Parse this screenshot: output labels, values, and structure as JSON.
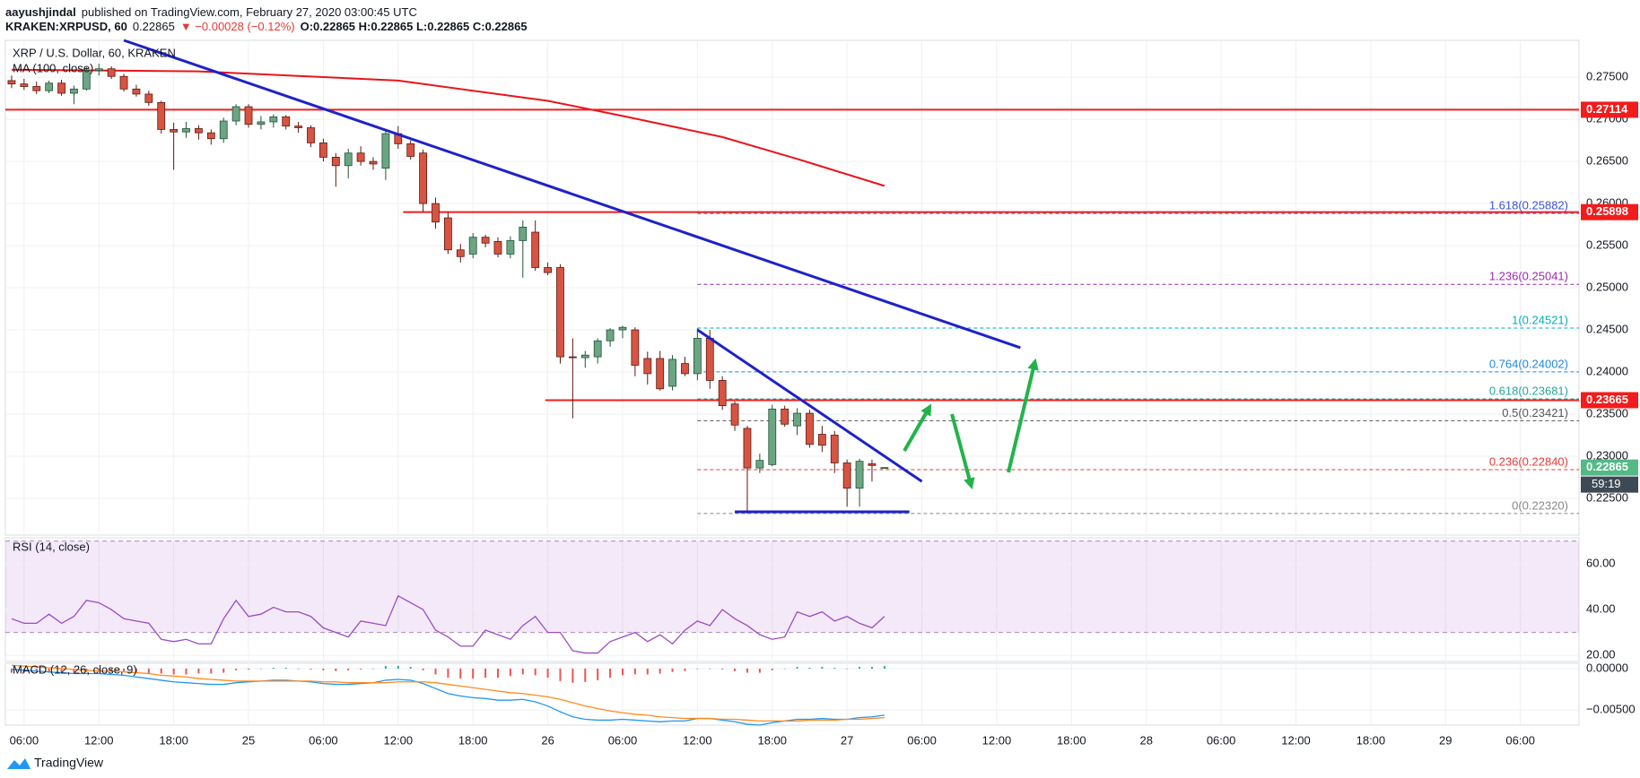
{
  "header": {
    "author": "aayushjindal",
    "published": "published on TradingView.com, February 27, 2020 03:00:45 UTC",
    "symbol": "KRAKEN:XRPUSD, 60",
    "price": "0.22865",
    "change": "▼ −0.00028 (−0.12%)",
    "ohlc": "O:0.22865 H:0.22865 L:0.22865 C:0.22865"
  },
  "chart_data": {
    "type": "candlestick",
    "title": "XRP / U.S. Dollar, 60, KRAKEN",
    "x": [
      5,
      6,
      7,
      8,
      9,
      10,
      11,
      12,
      13,
      14,
      15,
      16,
      17,
      18,
      19,
      20,
      21,
      22,
      23,
      24,
      25,
      26,
      27,
      28,
      29,
      30,
      31,
      32,
      33,
      34,
      35,
      36,
      37,
      38,
      39,
      40,
      41,
      42,
      43,
      44,
      45,
      46,
      47,
      48,
      49,
      50,
      51,
      52,
      53,
      54,
      55,
      56,
      57,
      58,
      59,
      60,
      61,
      62,
      63,
      64,
      65,
      66,
      67,
      68,
      69,
      70,
      71,
      72,
      73,
      74,
      75
    ],
    "open": [
      0.2746,
      0.2742,
      0.2739,
      0.2734,
      0.2743,
      0.2731,
      0.2736,
      0.2758,
      0.276,
      0.2751,
      0.2736,
      0.273,
      0.272,
      0.2688,
      0.2685,
      0.2689,
      0.2684,
      0.2677,
      0.2698,
      0.2715,
      0.2694,
      0.2697,
      0.2703,
      0.2692,
      0.269,
      0.2672,
      0.2655,
      0.2645,
      0.266,
      0.265,
      0.2642,
      0.2683,
      0.2671,
      0.266,
      0.26,
      0.2583,
      0.2545,
      0.254,
      0.256,
      0.2555,
      0.254,
      0.2556,
      0.2566,
      0.2524,
      0.2524,
      0.2418,
      0.2417,
      0.2418,
      0.2437,
      0.245,
      0.245,
      0.2416,
      0.2416,
      0.2383,
      0.241,
      0.2398,
      0.244,
      0.239,
      0.2362,
      0.2333,
      0.2286,
      0.229,
      0.2356,
      0.2336,
      0.2351,
      0.2326,
      0.2325,
      0.2292,
      0.2262,
      0.2291,
      0.22865
    ],
    "high": [
      0.2752,
      0.2748,
      0.2745,
      0.2746,
      0.2747,
      0.274,
      0.2762,
      0.2766,
      0.2763,
      0.2754,
      0.2741,
      0.2734,
      0.2722,
      0.2696,
      0.2697,
      0.2693,
      0.2688,
      0.2702,
      0.2718,
      0.2718,
      0.2704,
      0.2706,
      0.2705,
      0.2697,
      0.2693,
      0.2677,
      0.266,
      0.2665,
      0.2668,
      0.2655,
      0.2688,
      0.2692,
      0.2675,
      0.2664,
      0.2607,
      0.259,
      0.2552,
      0.2565,
      0.2563,
      0.256,
      0.2561,
      0.258,
      0.258,
      0.253,
      0.2528,
      0.244,
      0.2425,
      0.244,
      0.2452,
      0.2455,
      0.2453,
      0.2424,
      0.2425,
      0.242,
      0.2418,
      0.2452,
      0.245,
      0.2395,
      0.2365,
      0.2336,
      0.2303,
      0.2361,
      0.236,
      0.2357,
      0.2355,
      0.2336,
      0.233,
      0.2296,
      0.2297,
      0.2296,
      0.22865
    ],
    "low": [
      0.2737,
      0.2735,
      0.273,
      0.2731,
      0.2728,
      0.2718,
      0.2734,
      0.2752,
      0.2748,
      0.2733,
      0.2727,
      0.2716,
      0.2683,
      0.264,
      0.2678,
      0.2676,
      0.267,
      0.2672,
      0.2693,
      0.269,
      0.2688,
      0.269,
      0.2688,
      0.2684,
      0.2667,
      0.265,
      0.262,
      0.263,
      0.2645,
      0.264,
      0.2628,
      0.2665,
      0.2652,
      0.259,
      0.257,
      0.254,
      0.253,
      0.2535,
      0.2548,
      0.2536,
      0.2535,
      0.2512,
      0.252,
      0.2515,
      0.241,
      0.2345,
      0.2405,
      0.241,
      0.243,
      0.244,
      0.2395,
      0.2385,
      0.2378,
      0.2378,
      0.2395,
      0.239,
      0.238,
      0.2355,
      0.233,
      0.2232,
      0.228,
      0.2288,
      0.2335,
      0.2325,
      0.231,
      0.2305,
      0.228,
      0.224,
      0.224,
      0.227,
      0.22865
    ],
    "close": [
      0.2742,
      0.2739,
      0.2734,
      0.2743,
      0.2731,
      0.2736,
      0.2758,
      0.276,
      0.2751,
      0.2736,
      0.273,
      0.272,
      0.2688,
      0.2685,
      0.2689,
      0.2684,
      0.2677,
      0.2698,
      0.2715,
      0.2694,
      0.2697,
      0.2703,
      0.2692,
      0.269,
      0.2672,
      0.2655,
      0.2645,
      0.266,
      0.265,
      0.2647,
      0.2683,
      0.2671,
      0.2656,
      0.26,
      0.2578,
      0.2545,
      0.2537,
      0.256,
      0.2553,
      0.254,
      0.2556,
      0.2572,
      0.2524,
      0.2518,
      0.2418,
      0.2417,
      0.242,
      0.2437,
      0.245,
      0.2453,
      0.2408,
      0.2398,
      0.238,
      0.2415,
      0.2398,
      0.244,
      0.239,
      0.236,
      0.2337,
      0.2286,
      0.2295,
      0.2356,
      0.2338,
      0.2351,
      0.2314,
      0.2313,
      0.2292,
      0.2262,
      0.2294,
      0.2289,
      0.22865
    ],
    "up_color": "#6ba583",
    "down_color": "#d75442",
    "xlim": [
      4.5,
      130.7
    ],
    "xticks": [
      {
        "value": 6,
        "label": "06:00"
      },
      {
        "value": 12,
        "label": "12:00"
      },
      {
        "value": 18,
        "label": "18:00"
      },
      {
        "value": 24,
        "label": "25"
      },
      {
        "value": 30,
        "label": "06:00"
      },
      {
        "value": 36,
        "label": "12:00"
      },
      {
        "value": 42,
        "label": "18:00"
      },
      {
        "value": 48,
        "label": "26"
      },
      {
        "value": 54,
        "label": "06:00"
      },
      {
        "value": 60,
        "label": "12:00"
      },
      {
        "value": 66,
        "label": "18:00"
      },
      {
        "value": 72,
        "label": "27"
      },
      {
        "value": 78,
        "label": "06:00"
      },
      {
        "value": 84,
        "label": "12:00"
      },
      {
        "value": 90,
        "label": "18:00"
      },
      {
        "value": 96,
        "label": "28"
      },
      {
        "value": 102,
        "label": "06:00"
      },
      {
        "value": 108,
        "label": "12:00"
      },
      {
        "value": 114,
        "label": "18:00"
      },
      {
        "value": 120,
        "label": "29"
      },
      {
        "value": 126,
        "label": "06:00"
      }
    ],
    "ylim": [
      0.22063,
      0.27938
    ],
    "yticks": [
      {
        "value": 0.225,
        "label": "0.22500"
      },
      {
        "value": 0.23,
        "label": "0.23000"
      },
      {
        "value": 0.235,
        "label": "0.23500"
      },
      {
        "value": 0.24,
        "label": "0.24000"
      },
      {
        "value": 0.245,
        "label": "0.24500"
      },
      {
        "value": 0.25,
        "label": "0.25000"
      },
      {
        "value": 0.255,
        "label": "0.25500"
      },
      {
        "value": 0.26,
        "label": "0.26000"
      },
      {
        "value": 0.265,
        "label": "0.26500"
      },
      {
        "value": 0.27,
        "label": "0.27000"
      },
      {
        "value": 0.275,
        "label": "0.27500"
      }
    ],
    "grid": true,
    "ma": {
      "name": "MA (100, close)",
      "color": "#e8151b",
      "x": [
        5,
        20,
        36,
        48,
        54,
        62,
        68,
        75
      ],
      "values": [
        0.2759,
        0.2757,
        0.2746,
        0.2722,
        0.2704,
        0.2679,
        0.2653,
        0.2621
      ]
    },
    "trend_lines": [
      {
        "x": [
          14,
          85.9
        ],
        "values": [
          0.27938,
          0.24288
        ],
        "color": "#1e22c8"
      },
      {
        "x": [
          60,
          78
        ],
        "values": [
          0.245,
          0.227
        ],
        "color": "#1e22c8"
      },
      {
        "x": [
          63,
          77
        ],
        "values": [
          0.2234,
          0.2234
        ],
        "color": "#1e22c8"
      }
    ],
    "levels": {
      "color": "#f21c1c",
      "x_start": [
        4.5,
        36.4,
        47.8
      ],
      "values": [
        0.27114,
        0.25898,
        0.23665
      ]
    },
    "fib": {
      "x_start": 60,
      "values": [
        0.25882,
        0.25041,
        0.24521,
        0.24002,
        0.23681,
        0.23421,
        0.2284,
        0.2232
      ],
      "value_labels": [
        "1.618(0.25882)",
        "1.236(0.25041)",
        "1(0.24521)",
        "0.764(0.24002)",
        "0.618(0.23681)",
        "0.5(0.23421)",
        "0.236(0.22840)",
        "0(0.22320)"
      ],
      "colors": [
        "#3f51d6",
        "#9c27b0",
        "#00acc1",
        "#1e88e5",
        "#26a69a",
        "#555555",
        "#e53935",
        "#888888"
      ]
    },
    "last_price": 0.22865,
    "last_color": "#53b987",
    "countdown": "59:19",
    "rsi": {
      "name": "RSI (14, close)",
      "color": "#9c4bc6",
      "band": [
        30,
        70
      ],
      "ylim": [
        17.3,
        71.4
      ],
      "yticks": [
        {
          "value": 20,
          "label": "20.00"
        },
        {
          "value": 40,
          "label": "40.00"
        },
        {
          "value": 60,
          "label": "60.00"
        }
      ],
      "values": [
        36,
        34,
        34,
        38,
        34,
        37,
        44,
        43,
        40,
        36,
        35,
        34,
        27,
        26,
        27,
        25,
        25,
        36,
        44,
        37,
        38,
        41,
        39,
        39,
        37,
        32,
        30,
        28,
        35,
        34,
        33,
        46,
        43,
        40,
        31,
        28,
        24,
        24,
        31,
        29,
        27,
        33,
        37,
        30,
        30,
        22,
        21,
        21,
        26,
        28,
        30,
        26,
        29,
        25,
        31,
        35,
        33,
        40,
        36,
        33,
        29,
        27,
        28,
        39,
        37,
        39,
        35,
        37,
        34,
        32,
        37
      ]
    },
    "macd": {
      "name": "MACD (12, 26, close, 9)",
      "ylim": [
        -0.0068,
        0.00064
      ],
      "yticks": [
        {
          "value": 0,
          "label": "0.00000"
        },
        {
          "value": -0.005,
          "label": "−0.00500"
        }
      ],
      "macd_color": "#2196f3",
      "signal_color": "#ff8a1f",
      "hist_up": "#26a69a",
      "hist_down": "#ef5350",
      "macd": [
        -0.0001,
        -0.0002,
        -0.0003,
        -0.0004,
        -0.0005,
        -0.0006,
        -0.0006,
        -0.0006,
        -0.0007,
        -0.0008,
        -0.001,
        -0.0012,
        -0.0014,
        -0.0016,
        -0.0017,
        -0.0018,
        -0.0019,
        -0.0019,
        -0.0017,
        -0.0016,
        -0.0015,
        -0.0014,
        -0.0014,
        -0.0015,
        -0.0016,
        -0.0018,
        -0.0019,
        -0.0019,
        -0.0018,
        -0.0017,
        -0.0014,
        -0.0013,
        -0.0014,
        -0.0018,
        -0.0024,
        -0.003,
        -0.0033,
        -0.0035,
        -0.0036,
        -0.0038,
        -0.0038,
        -0.0037,
        -0.004,
        -0.0045,
        -0.0052,
        -0.0058,
        -0.0061,
        -0.0062,
        -0.0062,
        -0.0061,
        -0.0062,
        -0.0063,
        -0.0064,
        -0.0063,
        -0.0063,
        -0.006,
        -0.006,
        -0.0062,
        -0.0064,
        -0.0067,
        -0.0068,
        -0.0065,
        -0.0063,
        -0.0061,
        -0.0061,
        -0.006,
        -0.0061,
        -0.0061,
        -0.0059,
        -0.0058,
        -0.0056
      ],
      "signal": [
        0.0004,
        0.0003,
        0.0002,
        0.0001,
        0,
        -0.0001,
        -0.0002,
        -0.0003,
        -0.0003,
        -0.0004,
        -0.0005,
        -0.0006,
        -0.0008,
        -0.0009,
        -0.001,
        -0.0012,
        -0.0013,
        -0.0014,
        -0.0015,
        -0.0015,
        -0.0015,
        -0.0015,
        -0.0015,
        -0.0015,
        -0.0015,
        -0.0016,
        -0.0016,
        -0.0017,
        -0.0017,
        -0.0017,
        -0.0017,
        -0.0016,
        -0.0016,
        -0.0016,
        -0.0017,
        -0.0019,
        -0.0021,
        -0.0023,
        -0.0025,
        -0.0027,
        -0.0029,
        -0.003,
        -0.0032,
        -0.0034,
        -0.0037,
        -0.0041,
        -0.0045,
        -0.0048,
        -0.0051,
        -0.0053,
        -0.0055,
        -0.0056,
        -0.0058,
        -0.0059,
        -0.006,
        -0.006,
        -0.006,
        -0.0061,
        -0.0061,
        -0.0062,
        -0.0063,
        -0.0063,
        -0.0063,
        -0.0063,
        -0.0062,
        -0.0062,
        -0.0062,
        -0.0061,
        -0.0061,
        -0.006,
        -0.0059
      ],
      "histogram": [
        -0.0005,
        -0.0005,
        -0.0005,
        -0.0005,
        -0.0005,
        -0.0005,
        -0.0004,
        -0.0003,
        -0.0004,
        -0.0004,
        -0.0005,
        -0.0006,
        -0.0006,
        -0.0007,
        -0.0007,
        -0.0006,
        -0.0006,
        -0.0005,
        -0.0002,
        -0.0001,
        0,
        0.0001,
        0.0001,
        0,
        -0.0001,
        -0.0002,
        -0.0003,
        -0.0002,
        -0.0001,
        0,
        0.0003,
        0.0003,
        0.0002,
        -0.0002,
        -0.0007,
        -0.0011,
        -0.0012,
        -0.0012,
        -0.0011,
        -0.0011,
        -0.0009,
        -0.0007,
        -0.0008,
        -0.0011,
        -0.0015,
        -0.0017,
        -0.0016,
        -0.0014,
        -0.0011,
        -0.0008,
        -0.0007,
        -0.0007,
        -0.0006,
        -0.0004,
        -0.0003,
        0,
        0,
        -0.0001,
        -0.0003,
        -0.0005,
        -0.0005,
        -0.0002,
        0,
        0.0002,
        0.0001,
        0.0002,
        0.0001,
        0,
        0.0002,
        0.0002,
        0.0003
      ]
    }
  },
  "footer": {
    "brand": "TradingView"
  }
}
